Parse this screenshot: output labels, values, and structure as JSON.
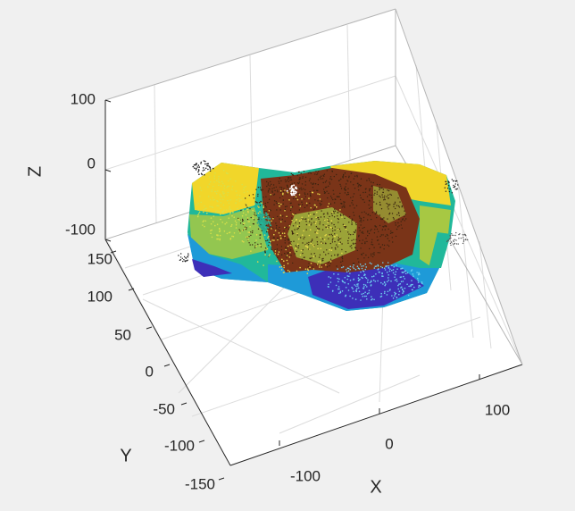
{
  "chart_data": {
    "type": "scatter",
    "subtype": "3d-point-cloud",
    "title": "",
    "xlabel": "X",
    "ylabel": "Y",
    "zlabel": "Z",
    "xlim": [
      -150,
      150
    ],
    "ylim": [
      -150,
      150
    ],
    "zlim": [
      -100,
      100
    ],
    "x_ticks": [
      "-100",
      "0",
      "100"
    ],
    "y_ticks": [
      "150",
      "100",
      "50",
      "0",
      "-50",
      "-100",
      "-150"
    ],
    "z_ticks": [
      "100",
      "0",
      "-100"
    ],
    "grid": true,
    "colormap": "parula",
    "colors": {
      "background": "#f0f0f0",
      "axes_face": "#ffffff",
      "grid": "#dcdcdc",
      "tick_text": "#262626",
      "low_z": "#3d2fb8",
      "mid_low_z": "#1e9ad8",
      "mid_z": "#21b89a",
      "mid_high_z": "#a7c843",
      "high_z": "#f1d62a",
      "textured_top": "#7a3418"
    },
    "view": "3d isometric, azimuth ≈ -20°, elevation ≈ 55°"
  }
}
